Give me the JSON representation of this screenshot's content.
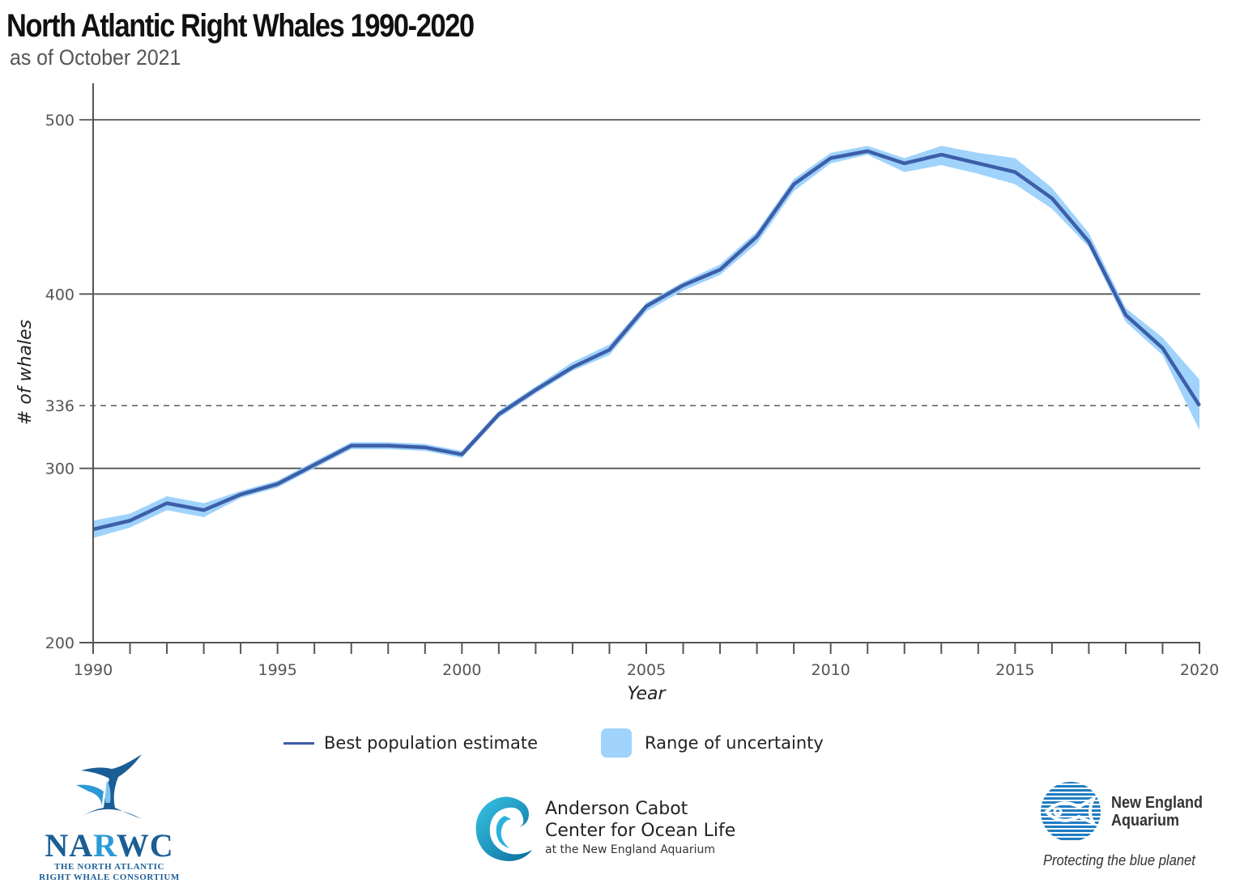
{
  "header": {
    "title": "North Atlantic Right Whales 1990-2020",
    "subtitle": "as of October 2021"
  },
  "colors": {
    "line": "#3d5ea8",
    "band": "#9fd3fb",
    "grid": "#555555",
    "reference": "#666666"
  },
  "chart_data": {
    "type": "line",
    "title": "North Atlantic Right Whales 1990-2020",
    "subtitle": "as of October 2021",
    "xlabel": "Year",
    "ylabel": "# of whales",
    "xlim": [
      1990,
      2020
    ],
    "ylim": [
      200,
      500
    ],
    "grid": true,
    "x_tick_labels": [
      "1990",
      "1995",
      "2000",
      "2005",
      "2010",
      "2015",
      "2020"
    ],
    "x_ticks_major": [
      1990,
      1995,
      2000,
      2005,
      2010,
      2015,
      2020
    ],
    "y_tick_labels": [
      "200",
      "300",
      "336",
      "400",
      "500"
    ],
    "y_ticks": [
      200,
      300,
      336,
      400,
      500
    ],
    "reference_line": {
      "value": 336,
      "style": "dashed",
      "label": "336"
    },
    "legend_position": "bottom-center",
    "x": [
      1990,
      1991,
      1992,
      1993,
      1994,
      1995,
      1996,
      1997,
      1998,
      1999,
      2000,
      2001,
      2002,
      2003,
      2004,
      2005,
      2006,
      2007,
      2008,
      2009,
      2010,
      2011,
      2012,
      2013,
      2014,
      2015,
      2016,
      2017,
      2018,
      2019,
      2020
    ],
    "series": [
      {
        "name": "Best population estimate",
        "kind": "line",
        "values": [
          265,
          270,
          280,
          276,
          285,
          291,
          302,
          313,
          313,
          312,
          308,
          331,
          345,
          358,
          368,
          393,
          405,
          414,
          433,
          463,
          478,
          482,
          475,
          480,
          475,
          470,
          455,
          430,
          388,
          369,
          336
        ]
      },
      {
        "name": "Range of uncertainty",
        "kind": "band",
        "lower": [
          260,
          266,
          276,
          272,
          283,
          289,
          300,
          311,
          311,
          310,
          306,
          329,
          343,
          356,
          365,
          390,
          402,
          411,
          429,
          459,
          475,
          480,
          470,
          474,
          469,
          463,
          449,
          427,
          384,
          365,
          322
        ],
        "upper": [
          270,
          274,
          284,
          280,
          287,
          293,
          304,
          315,
          315,
          314,
          310,
          333,
          347,
          361,
          371,
          395,
          407,
          417,
          436,
          466,
          481,
          485,
          478,
          485,
          481,
          478,
          461,
          435,
          392,
          375,
          351
        ]
      }
    ]
  },
  "legend": {
    "line_label": "Best population estimate",
    "band_label": "Range of uncertainty"
  },
  "logos": {
    "narwc": {
      "abbr_1": "NA",
      "abbr_2": "R",
      "abbr_3": "WC",
      "line1": "THE NORTH ATLANTIC",
      "line2": "RIGHT WHALE CONSORTIUM"
    },
    "anderson_cabot": {
      "line1": "Anderson Cabot",
      "line2": "Center for Ocean Life",
      "line3": "at the New England Aquarium"
    },
    "nea": {
      "line1": "New England",
      "line2": "Aquarium",
      "tagline": "Protecting the blue planet"
    }
  }
}
